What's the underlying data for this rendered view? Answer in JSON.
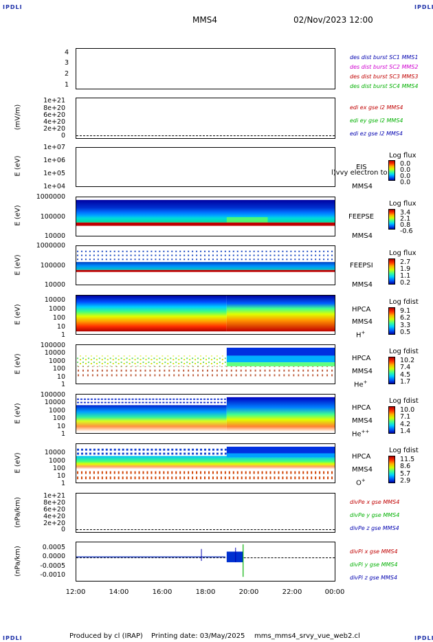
{
  "header": {
    "corner_label": "IPDLI",
    "spacecraft": "MMS4",
    "date_time": "02/Nov/2023 12:00"
  },
  "footer": {
    "produced_by": "Produced by  cl (IRAP)",
    "printing_date": "Printing date: 03/May/2025",
    "script_name": "mms_mms4_srvy_vue_web2.cl"
  },
  "colors": {
    "red": "#c00000",
    "magenta": "#d000d0",
    "green": "#00b000",
    "blue": "#0000b0",
    "corner": "#1c2fa8"
  },
  "chart_data": {
    "type": "multi-panel time series",
    "x_ticks": [
      "12:00",
      "14:00",
      "16:00",
      "18:00",
      "20:00",
      "22:00",
      "00:00"
    ],
    "panels": [
      {
        "id": "config",
        "ylabel": "",
        "y_ticks": [
          "4",
          "3",
          "2",
          "1"
        ],
        "legend": [
          {
            "text": "des dist burst SC1 MMS1",
            "color": "blue"
          },
          {
            "text": "des dist burst SC2 MMS2",
            "color": "magenta"
          },
          {
            "text": "des dist burst SC3 MMS3",
            "color": "red"
          },
          {
            "text": "des dist burst SC4 MMS4",
            "color": "green"
          }
        ]
      },
      {
        "id": "edi",
        "ylabel": "(mV/m)",
        "y_ticks": [
          "1e+21",
          "8e+20",
          "6e+20",
          "4e+20",
          "2e+20",
          "0"
        ],
        "legend": [
          {
            "text": "edi ex gse l2 MMS4",
            "color": "red"
          },
          {
            "text": "edi ey gse l2 MMS4",
            "color": "green"
          },
          {
            "text": "edi ez gse l2 MMS4",
            "color": "blue"
          }
        ]
      },
      {
        "id": "eis",
        "ylabel": "E (eV)",
        "y_ticks": [
          "1e+07",
          "1e+06",
          "1e+05",
          "1e+04"
        ],
        "instrument": [
          "EIS",
          "MMS4"
        ],
        "overflow_text": "l)vvy electron to",
        "colorbar": {
          "title": "Log flux",
          "values": [
            "0.0",
            "0.0",
            "0.0",
            "0.0"
          ]
        }
      },
      {
        "id": "feepse",
        "ylabel": "E (eV)",
        "y_ticks": [
          "1000000",
          "100000",
          "10000"
        ],
        "instrument": [
          "FEEPSE",
          "MMS4"
        ],
        "colorbar": {
          "title": "Log flux",
          "values": [
            "3.4",
            "2.1",
            "0.8",
            "-0.6"
          ]
        }
      },
      {
        "id": "feepsi",
        "ylabel": "E (eV)",
        "y_ticks": [
          "1000000",
          "100000",
          "10000"
        ],
        "instrument": [
          "FEEPSI",
          "MMS4"
        ],
        "colorbar": {
          "title": "Log flux",
          "values": [
            "2.7",
            "1.9",
            "1.1",
            "0.2"
          ]
        }
      },
      {
        "id": "hpca_h",
        "ylabel": "E (eV)",
        "y_ticks": [
          "10000",
          "1000",
          "100",
          "10",
          "1"
        ],
        "instrument": [
          "HPCA",
          "MMS4"
        ],
        "species": "H",
        "species_charge": "+",
        "colorbar": {
          "title": "Log fdist",
          "values": [
            "9.1",
            "6.2",
            "3.3",
            "0.5"
          ]
        }
      },
      {
        "id": "hpca_he",
        "ylabel": "E (eV)",
        "y_ticks": [
          "100000",
          "10000",
          "1000",
          "100",
          "10",
          "1"
        ],
        "instrument": [
          "HPCA",
          "MMS4"
        ],
        "species": "He",
        "species_charge": "+",
        "colorbar": {
          "title": "Log fdist",
          "values": [
            "10.2",
            "7.4",
            "4.5",
            "1.7"
          ]
        }
      },
      {
        "id": "hpca_he2",
        "ylabel": "E (eV)",
        "y_ticks": [
          "100000",
          "10000",
          "1000",
          "100",
          "10",
          "1"
        ],
        "instrument": [
          "HPCA",
          "MMS4"
        ],
        "species": "He",
        "species_charge": "++",
        "colorbar": {
          "title": "Log fdist",
          "values": [
            "10.0",
            "7.1",
            "4.2",
            "1.4"
          ]
        }
      },
      {
        "id": "hpca_o",
        "ylabel": "E (eV)",
        "y_ticks": [
          "10000",
          "1000",
          "100",
          "10",
          "1"
        ],
        "instrument": [
          "HPCA",
          "MMS4"
        ],
        "species": "O",
        "species_charge": "+",
        "colorbar": {
          "title": "Log fdist",
          "values": [
            "11.5",
            "8.6",
            "5.7",
            "2.9"
          ]
        }
      },
      {
        "id": "divpe",
        "ylabel": "(nPa/km)",
        "y_ticks": [
          "1e+21",
          "8e+20",
          "6e+20",
          "4e+20",
          "2e+20",
          "0"
        ],
        "legend": [
          {
            "text": "divPe x gse MMS4",
            "color": "red"
          },
          {
            "text": "divPe y gse MMS4",
            "color": "green"
          },
          {
            "text": "divPe z gse MMS4",
            "color": "blue"
          }
        ]
      },
      {
        "id": "divpi",
        "ylabel": "(nPa/km)",
        "y_ticks": [
          "0.0005",
          "0.0000",
          "-0.0005",
          "-0.0010"
        ],
        "ylim": [
          -0.0012,
          0.0007
        ],
        "legend": [
          {
            "text": "divPi x gse MMS4",
            "color": "red"
          },
          {
            "text": "divPi y gse MMS4",
            "color": "green"
          },
          {
            "text": "divPi z gse MMS4",
            "color": "blue"
          }
        ]
      }
    ]
  }
}
